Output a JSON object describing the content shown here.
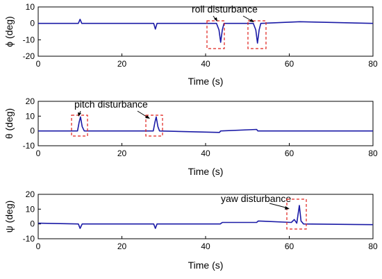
{
  "chart_data": [
    {
      "type": "line",
      "title": "",
      "xlabel": "Time (s)",
      "ylabel": "ϕ (deg)",
      "xlim": [
        0,
        80
      ],
      "ylim": [
        -20,
        10
      ],
      "xticks": [
        0,
        20,
        40,
        60,
        80
      ],
      "yticks": [
        10,
        0,
        -10,
        -20
      ],
      "grid": false,
      "series": [
        {
          "color": "#1a1aa6",
          "x": [
            0,
            9.6,
            10,
            10.4,
            27.6,
            28,
            28.4,
            42.6,
            43.2,
            43.6,
            44,
            44.4,
            51.4,
            52,
            52.4,
            52.8,
            53.2,
            62.5,
            80
          ],
          "y": [
            0,
            0,
            2.5,
            0,
            0,
            -3.5,
            0,
            0,
            -4,
            -11.5,
            -4,
            0,
            0,
            -4,
            -12,
            -4,
            0,
            1,
            0
          ]
        }
      ],
      "annotations": [
        {
          "text": "roll disturbance",
          "target_x": [
            43.6,
            52.4
          ]
        }
      ]
    },
    {
      "type": "line",
      "title": "",
      "xlabel": "Time (s)",
      "ylabel": "θ (deg)",
      "xlim": [
        0,
        80
      ],
      "ylim": [
        -10,
        20
      ],
      "xticks": [
        0,
        20,
        40,
        60,
        80
      ],
      "yticks": [
        20,
        10,
        0,
        -10
      ],
      "grid": false,
      "series": [
        {
          "color": "#1a1aa6",
          "x": [
            0,
            9.4,
            9.8,
            10.1,
            10.5,
            11,
            27.5,
            27.9,
            28.2,
            28.6,
            29,
            43.3,
            43.6,
            52.2,
            52.5,
            80
          ],
          "y": [
            0,
            0,
            6,
            9.5,
            3,
            0,
            0,
            6,
            9.5,
            3,
            0,
            -1,
            0,
            1,
            0,
            0
          ]
        }
      ],
      "annotations": [
        {
          "text": "pitch disturbance",
          "target_x": [
            10.1,
            28.2
          ]
        }
      ]
    },
    {
      "type": "line",
      "title": "",
      "xlabel": "Time (s)",
      "ylabel": "ψ (deg)",
      "xlim": [
        0,
        80
      ],
      "ylim": [
        -10,
        20
      ],
      "xticks": [
        0,
        20,
        40,
        60,
        80
      ],
      "yticks": [
        20,
        10,
        0,
        -10
      ],
      "grid": false,
      "series": [
        {
          "color": "#1a1aa6",
          "x": [
            0,
            9.6,
            10,
            10.5,
            27.6,
            28,
            28.4,
            43.5,
            44,
            52.2,
            52.6,
            60.5,
            61.2,
            61.8,
            62.4,
            62.8,
            63.4,
            80
          ],
          "y": [
            0.5,
            0,
            -3,
            0,
            0,
            -3,
            0,
            0,
            1,
            1,
            2,
            1,
            3,
            0.5,
            12.5,
            2,
            0,
            -0.5
          ]
        }
      ],
      "annotations": [
        {
          "text": "yaw disturbance",
          "target_x": [
            62.4
          ]
        }
      ]
    }
  ]
}
